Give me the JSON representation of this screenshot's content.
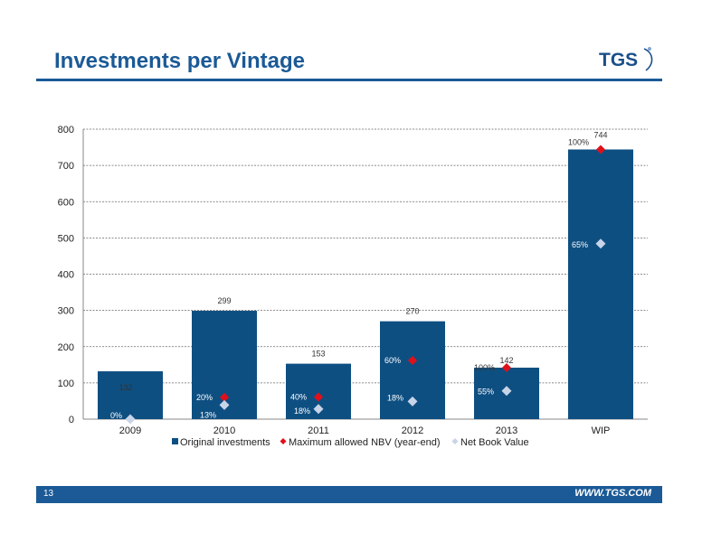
{
  "page": {
    "title": "Investments per Vintage",
    "logo_text": "TGS",
    "page_number": "13",
    "footer_url": "WWW.TGS.COM"
  },
  "colors": {
    "brand": "#1b5a96",
    "bar": "#0e4f82",
    "max_nbv": "#e0101a",
    "nbv": "#c8d4e8"
  },
  "chart_data": {
    "type": "bar",
    "categories": [
      "2009",
      "2010",
      "2011",
      "2012",
      "2013",
      "WIP"
    ],
    "ylim": [
      0,
      800
    ],
    "yticks": [
      0,
      100,
      200,
      300,
      400,
      500,
      600,
      700,
      800
    ],
    "grid": true,
    "legend_position": "bottom",
    "series": [
      {
        "name": "Original investments",
        "type": "bar",
        "values": [
          132,
          299,
          153,
          270,
          142,
          744
        ],
        "labels": [
          "132",
          "299",
          "153",
          "270",
          "142",
          "744"
        ]
      },
      {
        "name": "Maximum allowed NBV (year-end)",
        "type": "scatter",
        "marker": "diamond",
        "values": [
          null,
          60,
          61,
          162,
          142,
          744
        ],
        "labels": [
          "",
          "20%",
          "40%",
          "60%",
          "100%",
          "100%"
        ]
      },
      {
        "name": "Net Book Value",
        "type": "scatter",
        "marker": "diamond",
        "values": [
          0,
          39,
          28,
          49,
          78,
          484
        ],
        "labels": [
          "0%",
          "13%",
          "18%",
          "18%",
          "55%",
          "65%"
        ]
      }
    ]
  }
}
